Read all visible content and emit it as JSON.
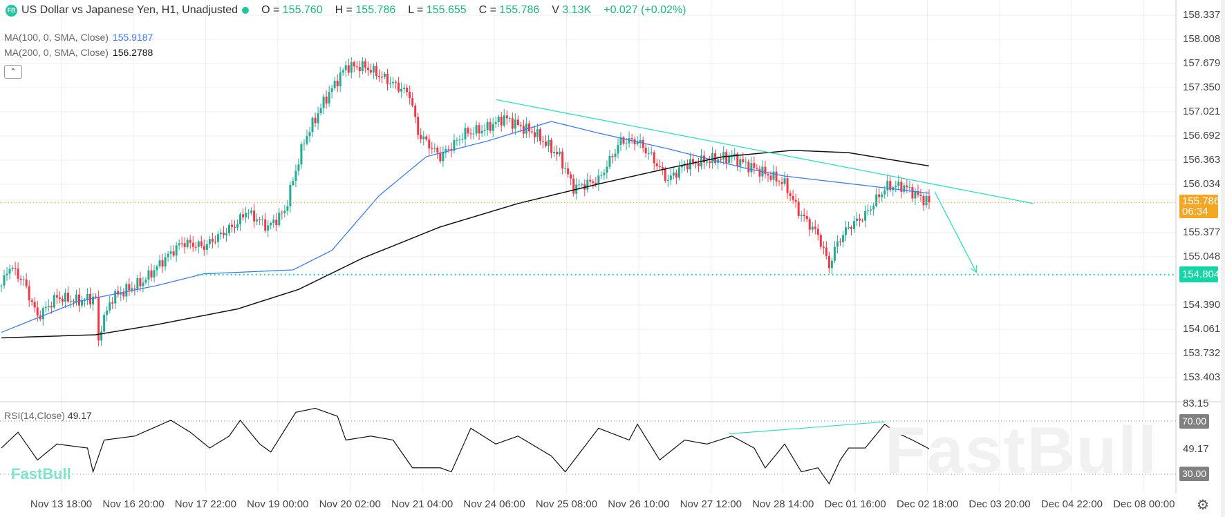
{
  "header": {
    "logo": "FB",
    "title": "US Dollar vs Japanese Yen, H1, Unadjusted",
    "open_label": "O =",
    "open": "155.760",
    "high_label": "H =",
    "high": "155.786",
    "low_label": "L =",
    "low": "155.655",
    "close_label": "C =",
    "close": "155.786",
    "volume_label": "V",
    "volume": "3.13K",
    "change": "+0.027 (+0.02%)"
  },
  "indicators": {
    "ma100_label": "MA(100, 0, SMA, Close)",
    "ma100_value": "155.9187",
    "ma200_label": "MA(200, 0, SMA, Close)",
    "ma200_value": "156.2788",
    "collapse_icon": "chevron-up-icon",
    "rsi_label": "RSI(14,Close)",
    "rsi_value": "49.17"
  },
  "price_axis": [
    "158.337",
    "158.008",
    "157.679",
    "157.350",
    "157.021",
    "156.692",
    "156.363",
    "156.034",
    "155.377",
    "155.048",
    "154.390",
    "154.061",
    "153.732",
    "153.403"
  ],
  "price_tags": {
    "current": "155.786",
    "countdown": "06:34",
    "level": "154.804"
  },
  "rsi_axis": {
    "top": "83.15",
    "mid": "49.17",
    "upper": "70.00",
    "lower": "30.00"
  },
  "time_axis": [
    "Nov 13 18:00",
    "Nov 16 20:00",
    "Nov 17 22:00",
    "Nov 19 00:00",
    "Nov 20 02:00",
    "Nov 21 04:00",
    "Nov 24 06:00",
    "Nov 25 08:00",
    "Nov 26 10:00",
    "Nov 27 12:00",
    "Nov 28 14:00",
    "Dec 01 16:00",
    "Dec 02 18:00",
    "Dec 03 20:00",
    "Dec 04 22:00",
    "Dec 08 00:00"
  ],
  "watermark": "FastBull",
  "logo_text": "FastBull",
  "colors": {
    "up": "#22ab94",
    "down": "#f23645",
    "ma100": "#3d7cf0",
    "ma200": "#111111",
    "drawing": "#2de0c0",
    "current": "#f5a623"
  },
  "chart_data": {
    "type": "candlestick",
    "symbol": "USD/JPY H1",
    "ylim": [
      153.2,
      158.5
    ],
    "bar_count": 335,
    "close_path": [
      [
        0,
        154.656
      ],
      [
        3,
        154.922
      ],
      [
        8,
        154.709
      ],
      [
        13,
        154.231
      ],
      [
        20,
        154.497
      ],
      [
        28,
        154.443
      ],
      [
        34,
        154.497
      ],
      [
        35,
        153.858
      ],
      [
        35.5,
        154.071
      ],
      [
        40,
        154.497
      ],
      [
        51,
        154.709
      ],
      [
        59,
        155.028
      ],
      [
        65,
        155.241
      ],
      [
        73,
        155.188
      ],
      [
        85,
        155.507
      ],
      [
        88,
        155.667
      ],
      [
        96,
        155.454
      ],
      [
        102,
        155.667
      ],
      [
        105,
        156.092
      ],
      [
        109,
        156.624
      ],
      [
        116,
        157.156
      ],
      [
        124,
        157.635
      ],
      [
        131,
        157.635
      ],
      [
        138,
        157.475
      ],
      [
        147,
        157.263
      ],
      [
        150,
        156.731
      ],
      [
        158,
        156.411
      ],
      [
        167,
        156.731
      ],
      [
        174,
        156.784
      ],
      [
        181,
        156.943
      ],
      [
        186,
        156.837
      ],
      [
        192,
        156.731
      ],
      [
        201,
        156.411
      ],
      [
        206,
        155.986
      ],
      [
        215,
        156.092
      ],
      [
        223,
        156.624
      ],
      [
        229,
        156.624
      ],
      [
        234,
        156.411
      ],
      [
        240,
        156.092
      ],
      [
        246,
        156.305
      ],
      [
        254,
        156.358
      ],
      [
        263,
        156.411
      ],
      [
        268,
        156.305
      ],
      [
        277,
        156.146
      ],
      [
        282,
        156.039
      ],
      [
        287,
        155.667
      ],
      [
        294,
        155.348
      ],
      [
        298,
        154.922
      ],
      [
        301,
        155.241
      ],
      [
        305,
        155.454
      ],
      [
        311,
        155.614
      ],
      [
        316,
        155.88
      ],
      [
        319,
        156.007
      ],
      [
        325,
        156.007
      ],
      [
        329,
        155.901
      ],
      [
        334,
        155.786
      ]
    ],
    "ma100_path": [
      [
        0,
        154.018
      ],
      [
        28,
        154.443
      ],
      [
        56,
        154.656
      ],
      [
        73,
        154.816
      ],
      [
        105,
        154.869
      ],
      [
        119,
        155.135
      ],
      [
        136,
        155.88
      ],
      [
        153,
        156.411
      ],
      [
        175,
        156.624
      ],
      [
        198,
        156.89
      ],
      [
        215,
        156.731
      ],
      [
        240,
        156.518
      ],
      [
        268,
        156.252
      ],
      [
        282,
        156.146
      ],
      [
        311,
        156.018
      ],
      [
        334,
        155.912
      ]
    ],
    "ma200_path": [
      [
        0,
        153.943
      ],
      [
        34,
        153.986
      ],
      [
        56,
        154.124
      ],
      [
        85,
        154.337
      ],
      [
        107,
        154.603
      ],
      [
        130,
        155.028
      ],
      [
        158,
        155.454
      ],
      [
        186,
        155.773
      ],
      [
        215,
        156.039
      ],
      [
        240,
        156.252
      ],
      [
        260,
        156.411
      ],
      [
        285,
        156.497
      ],
      [
        305,
        156.465
      ],
      [
        334,
        156.284
      ]
    ],
    "rsi": {
      "period": 14,
      "ylim": [
        0,
        100
      ],
      "levels": [
        30,
        70
      ],
      "path": [
        [
          0,
          49.7
        ],
        [
          6,
          61.6
        ],
        [
          13,
          40.7
        ],
        [
          20,
          52.7
        ],
        [
          31,
          49.7
        ],
        [
          33,
          31.8
        ],
        [
          37,
          55.7
        ],
        [
          48,
          58.7
        ],
        [
          61,
          70.6
        ],
        [
          68,
          61.6
        ],
        [
          75,
          49.7
        ],
        [
          82,
          58.7
        ],
        [
          86,
          70.6
        ],
        [
          93,
          52.7
        ],
        [
          97,
          46.7
        ],
        [
          106,
          76.6
        ],
        [
          113,
          79.6
        ],
        [
          121,
          73.6
        ],
        [
          124,
          55.7
        ],
        [
          133,
          58.7
        ],
        [
          141,
          55.7
        ],
        [
          148,
          34.8
        ],
        [
          158,
          34.8
        ],
        [
          162,
          31.8
        ],
        [
          169,
          64.6
        ],
        [
          178,
          52.7
        ],
        [
          186,
          58.7
        ],
        [
          198,
          43.7
        ],
        [
          203,
          31.8
        ],
        [
          215,
          64.6
        ],
        [
          226,
          55.7
        ],
        [
          229,
          67.6
        ],
        [
          237,
          40.7
        ],
        [
          246,
          55.7
        ],
        [
          254,
          52.7
        ],
        [
          263,
          58.7
        ],
        [
          271,
          49.7
        ],
        [
          275,
          34.8
        ],
        [
          282,
          52.7
        ],
        [
          288,
          31.8
        ],
        [
          294,
          34.8
        ],
        [
          298,
          22.8
        ],
        [
          302,
          40.7
        ],
        [
          305,
          49.7
        ],
        [
          311,
          49.7
        ],
        [
          318,
          67.6
        ],
        [
          322,
          61.6
        ],
        [
          328,
          55.7
        ],
        [
          334,
          49.17
        ]
      ]
    },
    "drawings": {
      "trendline": [
        [
          178,
          157.188
        ],
        [
          371.5,
          155.773
        ]
      ],
      "arrow": [
        [
          336,
          155.933
        ],
        [
          351,
          154.837
        ]
      ],
      "support_level": {
        "price": 154.804,
        "from_bar": 70.6
      },
      "rsi_trendline": [
        [
          262,
          60.4
        ],
        [
          318,
          69.4
        ]
      ]
    }
  }
}
